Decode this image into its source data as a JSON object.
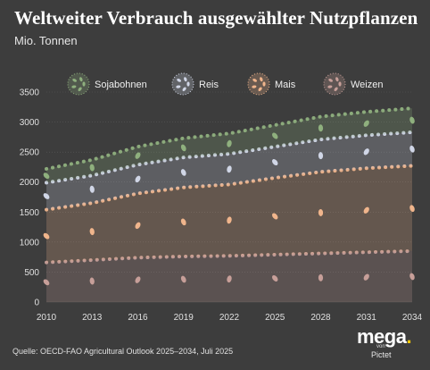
{
  "title": "Weltweiter Verbrauch ausgewählter Nutzpflanzen",
  "subtitle": "Mio. Tonnen",
  "source": "Quelle: OECD-FAO Agricultural Outlook 2025–2034, Juli 2025",
  "logo": {
    "brand": "mega",
    "dot": ".",
    "von": "von",
    "company": "Pictet"
  },
  "colors": {
    "background": "#3d3d3d",
    "Sojabohnen": "#8fb07e",
    "Reis": "#d0d6e6",
    "Mais": "#f0b58c",
    "Weizen": "#c79f99"
  },
  "chart_data": {
    "type": "area",
    "stacked": true,
    "title": "Weltweiter Verbrauch ausgewählter Nutzpflanzen",
    "ylabel": "Mio. Tonnen",
    "xlabel": "",
    "ylim": [
      0,
      3500
    ],
    "xlim": [
      2010,
      2034
    ],
    "yticks": [
      0,
      500,
      1000,
      1500,
      2000,
      2500,
      3000,
      3500
    ],
    "xticks": [
      2010,
      2013,
      2016,
      2019,
      2022,
      2025,
      2028,
      2031,
      2034
    ],
    "legend_position": "top",
    "x": [
      2010,
      2013,
      2016,
      2019,
      2022,
      2025,
      2028,
      2031,
      2034
    ],
    "series": [
      {
        "name": "Weizen",
        "values": [
          660,
          700,
          740,
          760,
          770,
          790,
          810,
          830,
          850
        ]
      },
      {
        "name": "Mais",
        "values": [
          880,
          950,
          1070,
          1150,
          1190,
          1280,
          1360,
          1400,
          1420
        ]
      },
      {
        "name": "Reis",
        "values": [
          450,
          460,
          480,
          500,
          510,
          520,
          540,
          550,
          560
        ]
      },
      {
        "name": "Sojabohnen",
        "values": [
          230,
          260,
          300,
          320,
          340,
          360,
          380,
          390,
          400
        ]
      }
    ]
  }
}
